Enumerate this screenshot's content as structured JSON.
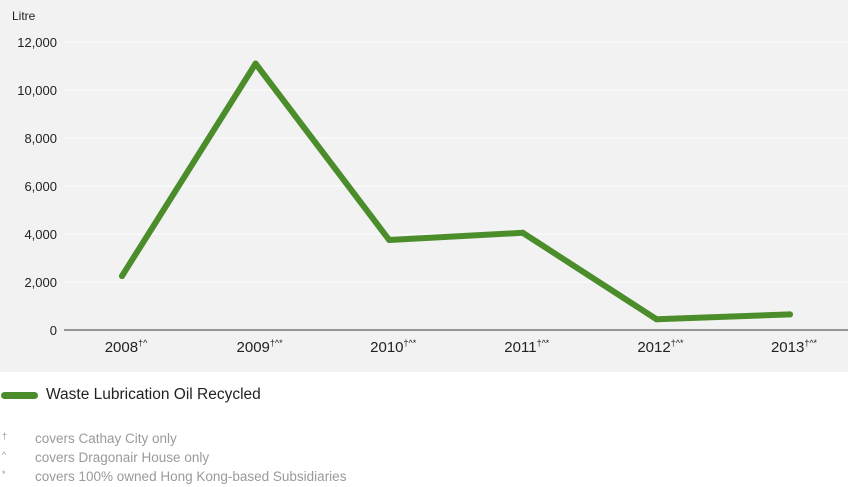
{
  "chart_data": {
    "type": "line",
    "unit_label": "Litre",
    "categories": [
      "2008",
      "2009",
      "2010",
      "2011",
      "2012",
      "2013"
    ],
    "category_marks": [
      "†^",
      "†^*",
      "†^*",
      "†^*",
      "†^*",
      "†^*"
    ],
    "series": [
      {
        "name": "Waste Lubrication Oil Recycled",
        "values": [
          2250,
          11100,
          3750,
          4050,
          450,
          650
        ]
      }
    ],
    "ylim": [
      0,
      12000
    ],
    "yticks": [
      0,
      2000,
      4000,
      6000,
      8000,
      10000,
      12000
    ],
    "ytick_labels": [
      "0",
      "2,000",
      "4,000",
      "6,000",
      "8,000",
      "10,000",
      "12,000"
    ],
    "grid": true,
    "legend_position": "bottom-left",
    "colors": {
      "line": "#4c8d2b",
      "grid": "#ffffff",
      "background": "#f2f2f2"
    }
  },
  "footnotes": [
    {
      "symbol": "†",
      "text": "covers Cathay City only"
    },
    {
      "symbol": "^",
      "text": "covers Dragonair House only"
    },
    {
      "symbol": "*",
      "text": "covers 100% owned Hong Kong-based Subsidiaries"
    }
  ]
}
